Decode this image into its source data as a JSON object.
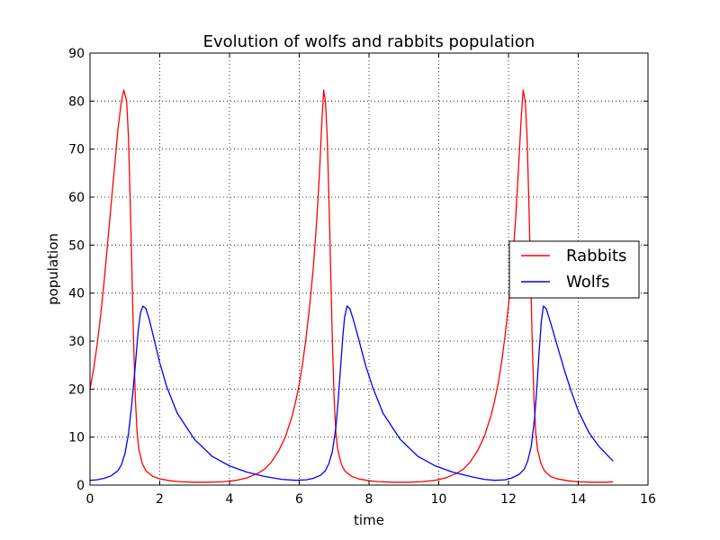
{
  "chart_data": {
    "type": "line",
    "title": "Evolution of wolfs and rabbits population",
    "xlabel": "time",
    "ylabel": "population",
    "xlim": [
      0,
      16
    ],
    "ylim": [
      0,
      90
    ],
    "xticks": [
      "0",
      "2",
      "4",
      "6",
      "8",
      "10",
      "12",
      "14",
      "16"
    ],
    "yticks": [
      "0",
      "10",
      "20",
      "30",
      "40",
      "50",
      "60",
      "70",
      "80",
      "90"
    ],
    "grid": true,
    "legend": {
      "placement": "right",
      "entries": [
        "Rabbits",
        "Wolfs"
      ]
    },
    "series": [
      {
        "name": "Rabbits",
        "color": "#ff0000",
        "points": [
          [
            0.0,
            20.0
          ],
          [
            0.1,
            24.0
          ],
          [
            0.2,
            29.0
          ],
          [
            0.3,
            35.0
          ],
          [
            0.4,
            42.0
          ],
          [
            0.5,
            50.0
          ],
          [
            0.6,
            58.0
          ],
          [
            0.7,
            66.0
          ],
          [
            0.8,
            74.0
          ],
          [
            0.9,
            80.0
          ],
          [
            0.97,
            82.3
          ],
          [
            1.05,
            80.0
          ],
          [
            1.1,
            73.0
          ],
          [
            1.15,
            60.0
          ],
          [
            1.2,
            45.0
          ],
          [
            1.25,
            30.0
          ],
          [
            1.3,
            18.0
          ],
          [
            1.35,
            11.0
          ],
          [
            1.4,
            7.5
          ],
          [
            1.5,
            4.5
          ],
          [
            1.6,
            3.0
          ],
          [
            1.8,
            1.8
          ],
          [
            2.0,
            1.3
          ],
          [
            2.3,
            0.9
          ],
          [
            2.6,
            0.7
          ],
          [
            3.0,
            0.6
          ],
          [
            3.4,
            0.6
          ],
          [
            3.8,
            0.7
          ],
          [
            4.2,
            1.0
          ],
          [
            4.5,
            1.5
          ],
          [
            4.8,
            2.4
          ],
          [
            5.0,
            3.3
          ],
          [
            5.2,
            4.8
          ],
          [
            5.4,
            7.0
          ],
          [
            5.6,
            10.0
          ],
          [
            5.8,
            14.5
          ],
          [
            5.9,
            17.5
          ],
          [
            6.0,
            21.0
          ],
          [
            6.1,
            25.5
          ],
          [
            6.2,
            31.0
          ],
          [
            6.3,
            37.5
          ],
          [
            6.4,
            45.0
          ],
          [
            6.5,
            55.0
          ],
          [
            6.58,
            65.0
          ],
          [
            6.65,
            76.0
          ],
          [
            6.7,
            82.3
          ],
          [
            6.75,
            80.0
          ],
          [
            6.8,
            73.0
          ],
          [
            6.85,
            60.0
          ],
          [
            6.9,
            45.0
          ],
          [
            6.95,
            30.0
          ],
          [
            7.0,
            18.0
          ],
          [
            7.05,
            11.0
          ],
          [
            7.1,
            7.5
          ],
          [
            7.2,
            4.5
          ],
          [
            7.3,
            3.0
          ],
          [
            7.5,
            1.8
          ],
          [
            7.7,
            1.3
          ],
          [
            8.0,
            0.9
          ],
          [
            8.3,
            0.7
          ],
          [
            8.7,
            0.6
          ],
          [
            9.1,
            0.6
          ],
          [
            9.5,
            0.7
          ],
          [
            9.9,
            1.0
          ],
          [
            10.2,
            1.5
          ],
          [
            10.5,
            2.4
          ],
          [
            10.7,
            3.3
          ],
          [
            10.9,
            4.8
          ],
          [
            11.1,
            7.0
          ],
          [
            11.3,
            10.0
          ],
          [
            11.5,
            14.5
          ],
          [
            11.6,
            17.5
          ],
          [
            11.7,
            21.0
          ],
          [
            11.8,
            25.5
          ],
          [
            11.9,
            31.0
          ],
          [
            12.0,
            37.5
          ],
          [
            12.1,
            45.0
          ],
          [
            12.2,
            55.0
          ],
          [
            12.28,
            65.0
          ],
          [
            12.36,
            76.0
          ],
          [
            12.42,
            82.3
          ],
          [
            12.48,
            80.0
          ],
          [
            12.53,
            73.0
          ],
          [
            12.58,
            60.0
          ],
          [
            12.63,
            45.0
          ],
          [
            12.68,
            30.0
          ],
          [
            12.73,
            18.0
          ],
          [
            12.78,
            11.0
          ],
          [
            12.83,
            7.5
          ],
          [
            12.93,
            4.5
          ],
          [
            13.03,
            3.0
          ],
          [
            13.2,
            1.8
          ],
          [
            13.4,
            1.3
          ],
          [
            13.7,
            0.9
          ],
          [
            14.0,
            0.7
          ],
          [
            14.4,
            0.6
          ],
          [
            14.8,
            0.6
          ],
          [
            15.0,
            0.7
          ]
        ]
      },
      {
        "name": "Wolfs",
        "color": "#0000ff",
        "points": [
          [
            0.0,
            1.0
          ],
          [
            0.2,
            1.1
          ],
          [
            0.4,
            1.4
          ],
          [
            0.6,
            1.9
          ],
          [
            0.8,
            3.0
          ],
          [
            0.9,
            4.2
          ],
          [
            1.0,
            6.5
          ],
          [
            1.1,
            10.5
          ],
          [
            1.2,
            17.0
          ],
          [
            1.3,
            25.0
          ],
          [
            1.38,
            32.0
          ],
          [
            1.45,
            36.0
          ],
          [
            1.52,
            37.3
          ],
          [
            1.6,
            36.8
          ],
          [
            1.7,
            34.5
          ],
          [
            1.8,
            31.5
          ],
          [
            2.0,
            25.5
          ],
          [
            2.2,
            20.5
          ],
          [
            2.5,
            15.0
          ],
          [
            3.0,
            9.5
          ],
          [
            3.5,
            6.0
          ],
          [
            4.0,
            4.0
          ],
          [
            4.5,
            2.7
          ],
          [
            5.0,
            1.8
          ],
          [
            5.5,
            1.2
          ],
          [
            5.9,
            1.0
          ],
          [
            6.2,
            1.1
          ],
          [
            6.4,
            1.4
          ],
          [
            6.6,
            2.0
          ],
          [
            6.75,
            3.0
          ],
          [
            6.85,
            4.5
          ],
          [
            6.95,
            7.0
          ],
          [
            7.05,
            12.0
          ],
          [
            7.12,
            18.0
          ],
          [
            7.18,
            24.0
          ],
          [
            7.25,
            31.0
          ],
          [
            7.3,
            35.0
          ],
          [
            7.37,
            37.3
          ],
          [
            7.45,
            36.8
          ],
          [
            7.55,
            34.5
          ],
          [
            7.7,
            30.5
          ],
          [
            7.9,
            25.0
          ],
          [
            8.1,
            20.5
          ],
          [
            8.4,
            15.0
          ],
          [
            8.9,
            9.5
          ],
          [
            9.4,
            6.0
          ],
          [
            9.9,
            4.0
          ],
          [
            10.4,
            2.7
          ],
          [
            10.9,
            1.8
          ],
          [
            11.3,
            1.2
          ],
          [
            11.6,
            1.0
          ],
          [
            11.9,
            1.1
          ],
          [
            12.1,
            1.5
          ],
          [
            12.3,
            2.2
          ],
          [
            12.45,
            3.3
          ],
          [
            12.55,
            5.0
          ],
          [
            12.65,
            8.0
          ],
          [
            12.75,
            14.0
          ],
          [
            12.82,
            21.0
          ],
          [
            12.88,
            28.0
          ],
          [
            12.94,
            34.0
          ],
          [
            13.0,
            37.3
          ],
          [
            13.08,
            36.8
          ],
          [
            13.2,
            34.0
          ],
          [
            13.4,
            29.0
          ],
          [
            13.6,
            24.0
          ],
          [
            13.8,
            19.5
          ],
          [
            14.0,
            15.5
          ],
          [
            14.3,
            11.0
          ],
          [
            14.6,
            8.0
          ],
          [
            15.0,
            5.0
          ]
        ]
      }
    ]
  }
}
